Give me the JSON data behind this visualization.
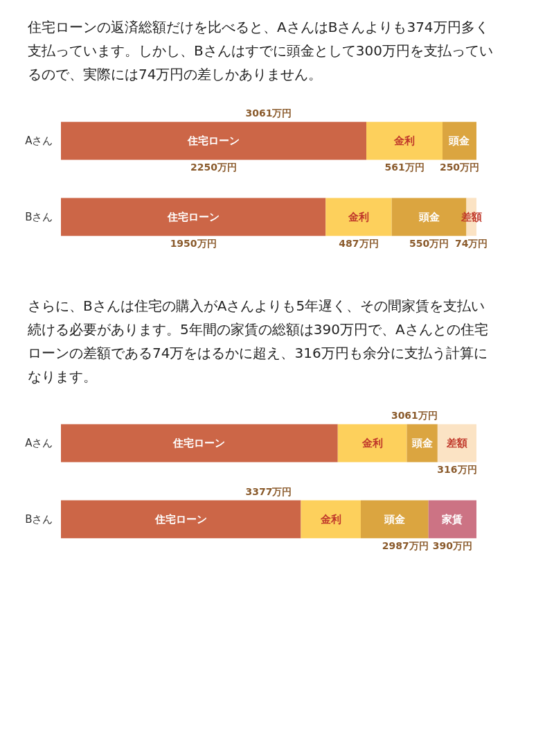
{
  "chart_data": [
    {
      "type": "bar",
      "orientation": "horizontal",
      "stacked": true,
      "title": "住宅ローンの返済総額だけを比べると、AさんはBさんよりも374万円多く支払っています。しかし、Bさんはすでに頭金として300万円を支払っているので、実際には74万円の差しかありません。",
      "categories": [
        "Aさん",
        "Bさん"
      ],
      "tick_labels": "y",
      "legend": false,
      "series": [
        {
          "name": "住宅ローン",
          "color": "#cc6647",
          "values": [
            2250,
            1950
          ],
          "value_labels": [
            "2250万円",
            "1950万円"
          ]
        },
        {
          "name": "金利",
          "color": "#fdd05c",
          "values": [
            561,
            487
          ],
          "value_labels": [
            "561万円",
            "487万円"
          ]
        },
        {
          "name": "頭金",
          "color": "#dba540",
          "values": [
            250,
            550
          ],
          "value_labels": [
            "250万円",
            "550万円"
          ]
        },
        {
          "name": "差額",
          "color": "#fbe3c4",
          "values": [
            null,
            74
          ],
          "value_labels": [
            null,
            "74万円"
          ]
        }
      ],
      "totals": [
        "3061万円",
        null
      ]
    },
    {
      "type": "bar",
      "orientation": "horizontal",
      "stacked": true,
      "title": "さらに、Bさんは住宅の購入がAさんよりも5年遅く、その間家賃を支払い続ける必要があります。5年間の家賃の総額は390万円で、Aさんとの住宅ローンの差額である74万をはるかに超え、316万円も余分に支払う計算になります。",
      "categories": [
        "Aさん",
        "Bさん"
      ],
      "tick_labels": "y",
      "legend": false,
      "series": [
        {
          "name": "住宅ローン",
          "color": "#cc6647",
          "values": [
            2250,
            1950
          ]
        },
        {
          "name": "金利",
          "color": "#fdd05c",
          "values": [
            561,
            487
          ]
        },
        {
          "name": "頭金",
          "color": "#dba540",
          "values": [
            250,
            550
          ]
        },
        {
          "name": "差額",
          "color": "#fbe3c4",
          "values": [
            316,
            null
          ],
          "value_labels": [
            "316万円",
            null
          ]
        },
        {
          "name": "家賃",
          "color": "#cc7384",
          "values": [
            null,
            390
          ],
          "value_labels": [
            null,
            "390万円"
          ]
        }
      ],
      "totals": [
        null,
        "3377万円"
      ],
      "annotations": [
        {
          "text": "3061万円",
          "x": 3061,
          "y": "Aさん"
        },
        {
          "text": "2987万円",
          "x": 2987,
          "y": "Bさん"
        }
      ]
    }
  ]
}
